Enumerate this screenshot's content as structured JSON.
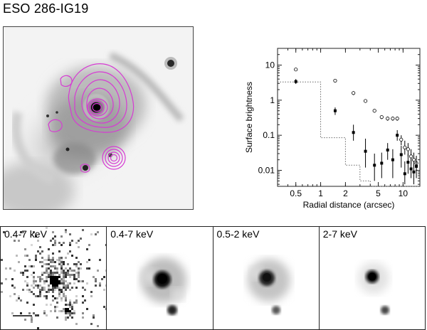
{
  "figure": {
    "title": "ESO 286-IG19"
  },
  "chart_data": {
    "type": "scatter",
    "xlabel": "Radial distance (arcsec)",
    "ylabel": "Surface brightness",
    "xscale": "log",
    "yscale": "log",
    "xlim": [
      0.3,
      16
    ],
    "ylim": [
      0.0035,
      30
    ],
    "x_ticks": [
      0.5,
      1,
      2,
      5,
      10
    ],
    "x_tick_labels": [
      "0.5",
      "1",
      "2",
      "5",
      "10"
    ],
    "y_ticks": [
      0.01,
      0.1,
      1,
      10
    ],
    "y_tick_labels": [
      "0.01",
      "0.1",
      "1",
      "10"
    ],
    "grid": false,
    "series": [
      {
        "marker": "open-circle",
        "points": [
          {
            "x": 0.5,
            "y": 7.5,
            "lo": 6.8,
            "hi": 8.3
          },
          {
            "x": 1.5,
            "y": 3.6,
            "lo": 3.2,
            "hi": 4.0
          },
          {
            "x": 2.5,
            "y": 1.6,
            "lo": 1.4,
            "hi": 1.8
          },
          {
            "x": 3.5,
            "y": 0.95,
            "lo": 0.84,
            "hi": 1.06
          },
          {
            "x": 4.5,
            "y": 0.5,
            "lo": 0.44,
            "hi": 0.56
          },
          {
            "x": 5.5,
            "y": 0.33,
            "lo": 0.29,
            "hi": 0.37
          },
          {
            "x": 6.5,
            "y": 0.3,
            "lo": 0.26,
            "hi": 0.34
          },
          {
            "x": 7.5,
            "y": 0.3,
            "lo": 0.26,
            "hi": 0.34
          },
          {
            "x": 8.5,
            "y": 0.3,
            "lo": 0.26,
            "hi": 0.34
          },
          {
            "x": 9.5,
            "y": 0.075,
            "lo": 0.052,
            "hi": 0.1
          },
          {
            "x": 10.5,
            "y": 0.045,
            "lo": 0.028,
            "hi": 0.07
          },
          {
            "x": 11.5,
            "y": 0.04,
            "lo": 0.025,
            "hi": 0.06
          },
          {
            "x": 12.5,
            "y": 0.025,
            "lo": 0.015,
            "hi": 0.04
          },
          {
            "x": 13.5,
            "y": 0.02,
            "lo": 0.012,
            "hi": 0.032
          },
          {
            "x": 14.5,
            "y": 0.016,
            "lo": 0.009,
            "hi": 0.026
          }
        ]
      },
      {
        "marker": "filled-square",
        "points": [
          {
            "x": 0.5,
            "y": 3.4,
            "lo": 2.9,
            "hi": 4.0
          },
          {
            "x": 1.5,
            "y": 0.5,
            "lo": 0.38,
            "hi": 0.62
          },
          {
            "x": 2.5,
            "y": 0.12,
            "lo": 0.07,
            "hi": 0.2
          },
          {
            "x": 3.5,
            "y": 0.035,
            "lo": 0.012,
            "hi": 0.08
          },
          {
            "x": 4.5,
            "y": 0.014,
            "lo": 0.005,
            "hi": 0.03
          },
          {
            "x": 5.5,
            "y": 0.016,
            "lo": 0.006,
            "hi": 0.032
          },
          {
            "x": 6.5,
            "y": 0.038,
            "lo": 0.02,
            "hi": 0.06
          },
          {
            "x": 7.5,
            "y": 0.02,
            "lo": 0.006,
            "hi": 0.04
          },
          {
            "x": 8.5,
            "y": 0.1,
            "lo": 0.07,
            "hi": 0.14
          },
          {
            "x": 9.5,
            "y": 0.028,
            "lo": 0.012,
            "hi": 0.05
          },
          {
            "x": 10.5,
            "y": 0.008,
            "lo": 0.004,
            "hi": 0.018
          },
          {
            "x": 11.5,
            "y": 0.017,
            "lo": 0.008,
            "hi": 0.03
          },
          {
            "x": 12.5,
            "y": 0.011,
            "lo": 0.006,
            "hi": 0.02
          },
          {
            "x": 13.5,
            "y": 0.009,
            "lo": 0.004,
            "hi": 0.015
          },
          {
            "x": 14.5,
            "y": 0.013,
            "lo": 0.006,
            "hi": 0.022
          }
        ]
      },
      {
        "marker": "dotted-step",
        "steps": [
          {
            "x0": 0.3,
            "x1": 1.0,
            "y": 3.3
          },
          {
            "x0": 1.0,
            "x1": 2.0,
            "y": 0.085
          },
          {
            "x0": 2.0,
            "x1": 3.0,
            "y": 0.014
          },
          {
            "x0": 3.0,
            "x1": 4.0,
            "y": 0.005
          },
          {
            "x0": 4.0,
            "x1": 16,
            "y": 0.0035
          }
        ]
      }
    ]
  },
  "colors": {
    "contour": "#d63bd3",
    "marker": "#000000",
    "frame": "#222222"
  },
  "panels": [
    {
      "label": "0.4-7 keV",
      "style": "pixelated",
      "scale_bar": true
    },
    {
      "label": "0.4-7 keV",
      "style": "smoothed"
    },
    {
      "label": "0.5-2 keV",
      "style": "smoothed"
    },
    {
      "label": "2-7 keV",
      "style": "smoothed"
    }
  ]
}
